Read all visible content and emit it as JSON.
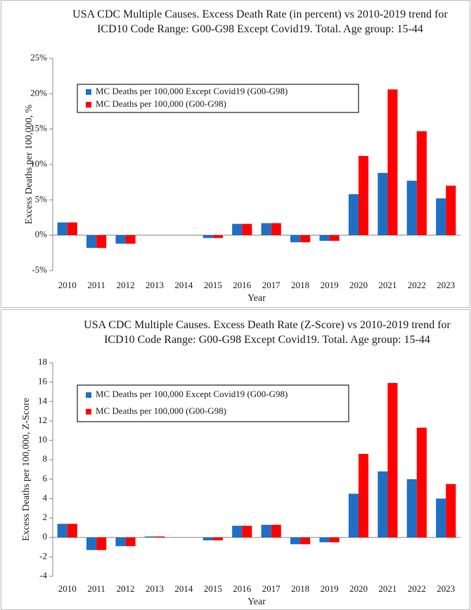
{
  "chart_data": [
    {
      "type": "bar",
      "title": "USA CDC Multiple Causes. Excess Death Rate (in percent) vs 2010-2019 trend for ICD10 Code Range: G00-G98 Except Covid19. Total. Age group: 15-44",
      "x_label": "Year",
      "y_label": "Excess Deaths per 100,000, %",
      "categories": [
        "2010",
        "2011",
        "2012",
        "2013",
        "2014",
        "2015",
        "2016",
        "2017",
        "2018",
        "2019",
        "2020",
        "2021",
        "2022",
        "2023"
      ],
      "series": [
        {
          "name": "MC Deaths per 100,000 Except Covid19 (G00-G98)",
          "color": "#1f6fc5",
          "values": [
            1.8,
            -1.8,
            -1.2,
            0,
            0,
            -0.4,
            1.6,
            1.7,
            -1.0,
            -0.8,
            5.8,
            8.8,
            7.7,
            5.2
          ]
        },
        {
          "name": "MC Deaths per 100,000 (G00-G98)",
          "color": "#ff0000",
          "values": [
            1.8,
            -1.8,
            -1.2,
            0,
            0,
            -0.4,
            1.6,
            1.7,
            -1.0,
            -0.8,
            11.2,
            20.6,
            14.7,
            7.0
          ]
        }
      ],
      "ylim": [
        -5,
        25
      ],
      "yticks": [
        {
          "value": -5,
          "label": "-5%"
        },
        {
          "value": 0,
          "label": "0%"
        },
        {
          "value": 5,
          "label": "5%"
        },
        {
          "value": 10,
          "label": "10%"
        },
        {
          "value": 15,
          "label": "15%"
        },
        {
          "value": 20,
          "label": "20%"
        },
        {
          "value": 25,
          "label": "25%"
        }
      ],
      "grid": false,
      "legend": "upper left"
    },
    {
      "type": "bar",
      "title": "USA CDC Multiple Causes. Excess Death Rate (Z-Score) vs 2010-2019 trend for ICD10 Code Range: G00-G98 Except Covid19. Total. Age group: 15-44",
      "x_label": "Year",
      "y_label": "Excess Deaths per 100,000, Z-Score",
      "categories": [
        "2010",
        "2011",
        "2012",
        "2013",
        "2014",
        "2015",
        "2016",
        "2017",
        "2018",
        "2019",
        "2020",
        "2021",
        "2022",
        "2023"
      ],
      "series": [
        {
          "name": "MC Deaths per 100,000 Except Covid19 (G00-G98)",
          "color": "#1f6fc5",
          "values": [
            1.4,
            -1.3,
            -0.9,
            0.1,
            0,
            -0.3,
            1.2,
            1.3,
            -0.7,
            -0.5,
            4.5,
            6.8,
            6.0,
            4.0
          ]
        },
        {
          "name": "MC Deaths per 100,000 (G00-G98)",
          "color": "#ff0000",
          "values": [
            1.4,
            -1.3,
            -0.9,
            0.1,
            0,
            -0.3,
            1.2,
            1.3,
            -0.7,
            -0.5,
            8.6,
            15.9,
            11.3,
            5.5
          ]
        }
      ],
      "ylim": [
        -4,
        18
      ],
      "yticks": [
        -4,
        -2,
        0,
        2,
        4,
        6,
        8,
        10,
        12,
        14,
        16,
        18
      ],
      "grid": false,
      "legend": "upper left"
    }
  ]
}
